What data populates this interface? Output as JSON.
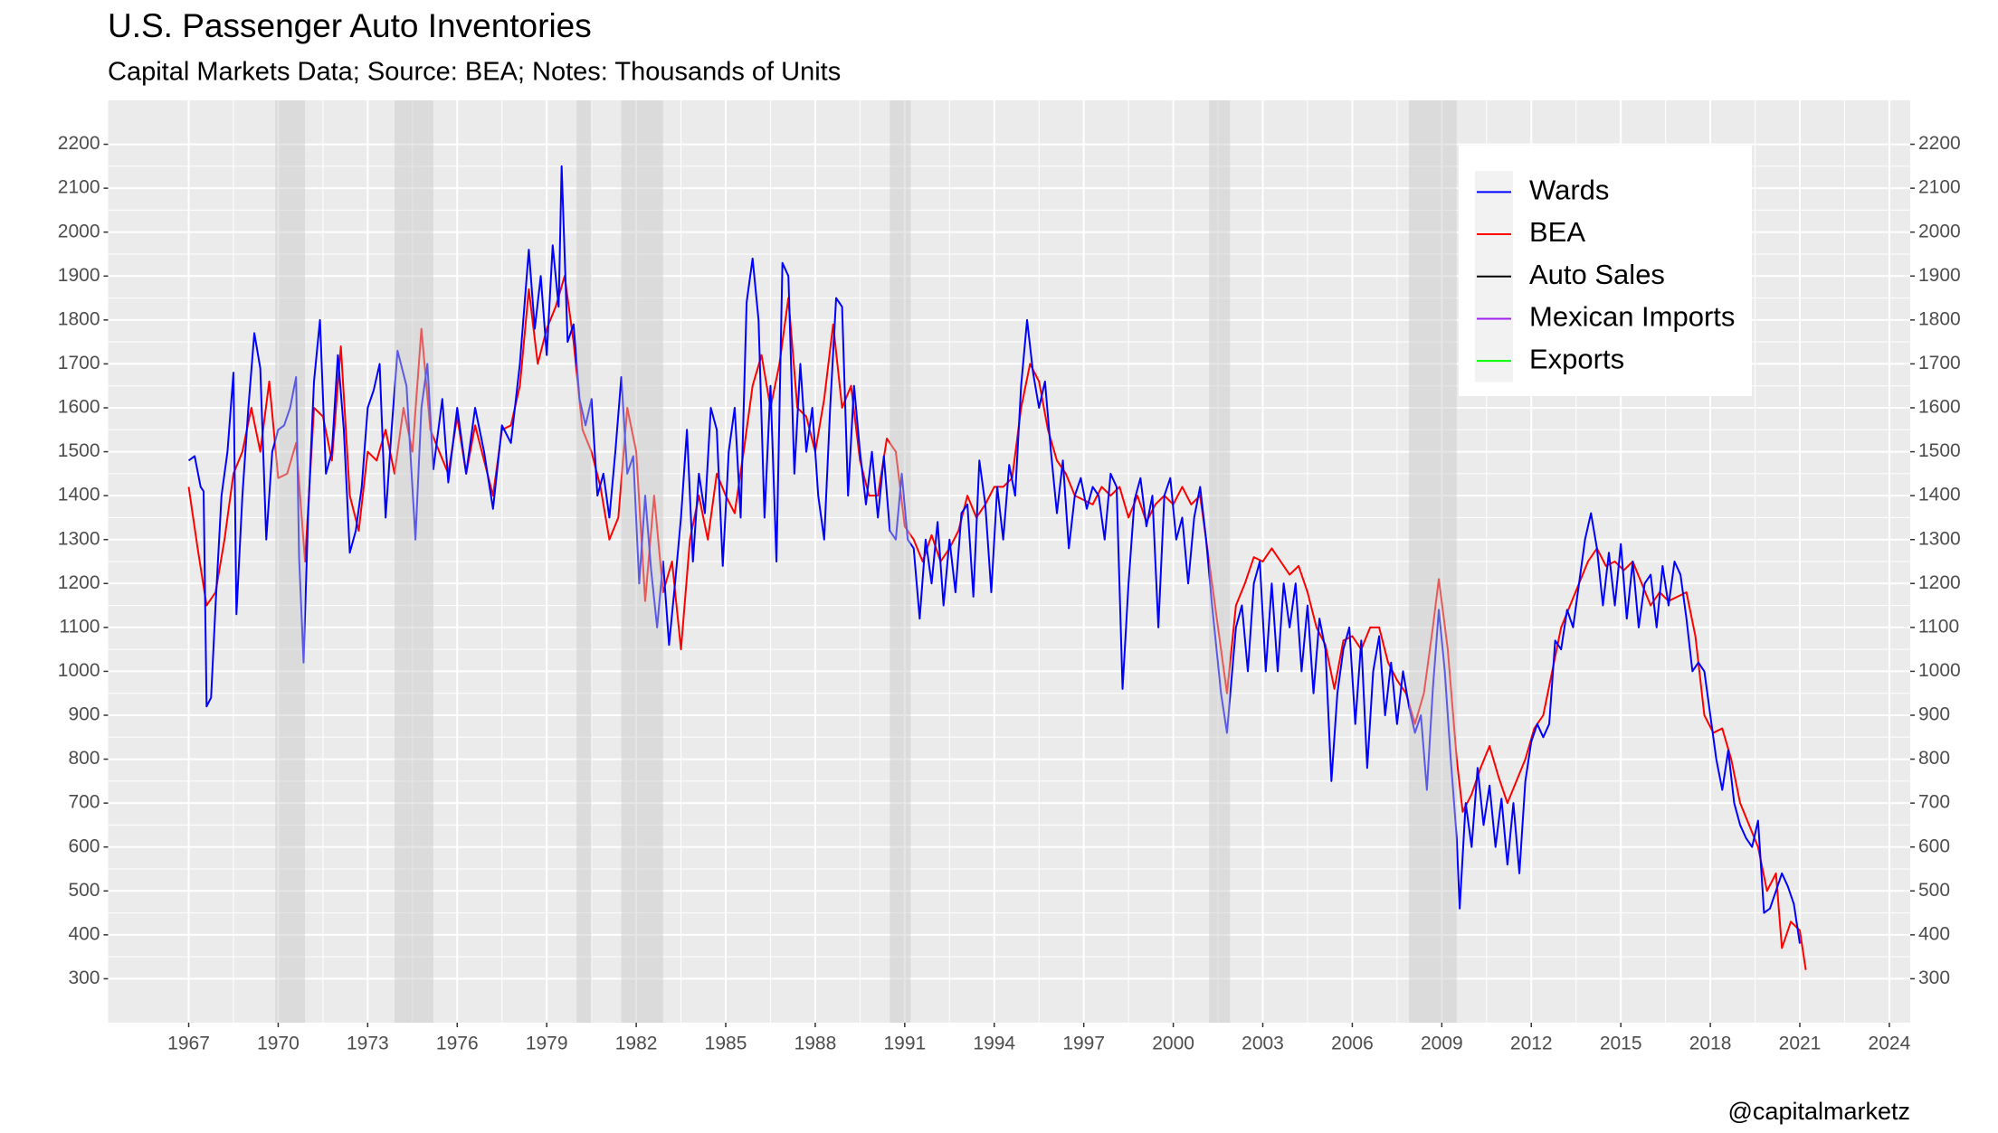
{
  "chart_data": {
    "type": "line",
    "title": "U.S. Passenger Auto Inventories",
    "subtitle": "Capital Markets Data; Source: BEA; Notes: Thousands of Units",
    "caption": "@capitalmarketz",
    "xlim": [
      1964.3,
      2024.7
    ],
    "xticks": [
      1967,
      1970,
      1973,
      1976,
      1979,
      1982,
      1985,
      1988,
      1991,
      1994,
      1997,
      2000,
      2003,
      2006,
      2009,
      2012,
      2015,
      2018,
      2021,
      2024
    ],
    "ylim": [
      200,
      2300
    ],
    "yticks": [
      300,
      400,
      500,
      600,
      700,
      800,
      900,
      1000,
      1100,
      1200,
      1300,
      1400,
      1500,
      1600,
      1700,
      1800,
      1900,
      2000,
      2100,
      2200
    ],
    "y2lim": [
      200,
      2300
    ],
    "y2ticks": [
      300,
      400,
      500,
      600,
      700,
      800,
      900,
      1000,
      1100,
      1200,
      1300,
      1400,
      1500,
      1600,
      1700,
      1800,
      1900,
      2000,
      2100,
      2200
    ],
    "grid": true,
    "legend": "top-right",
    "recessions": [
      [
        1969.9,
        1970.9
      ],
      [
        1973.9,
        1975.2
      ],
      [
        1980.0,
        1980.5
      ],
      [
        1981.5,
        1982.9
      ],
      [
        1990.5,
        1991.2
      ],
      [
        2001.2,
        2001.9
      ],
      [
        2007.9,
        2009.5
      ]
    ],
    "series": [
      {
        "name": "Wards",
        "color": "#0000ff",
        "x": [
          1967.0,
          1967.2,
          1967.4,
          1967.5,
          1967.6,
          1967.75,
          1967.9,
          1968.1,
          1968.3,
          1968.5,
          1968.6,
          1968.8,
          1969.0,
          1969.2,
          1969.4,
          1969.6,
          1969.8,
          1970.0,
          1970.2,
          1970.4,
          1970.6,
          1970.7,
          1970.85,
          1971.0,
          1971.2,
          1971.4,
          1971.6,
          1971.8,
          1972.0,
          1972.2,
          1972.4,
          1972.6,
          1972.8,
          1973.0,
          1973.2,
          1973.4,
          1973.6,
          1973.8,
          1974.0,
          1974.3,
          1974.6,
          1974.8,
          1975.0,
          1975.2,
          1975.5,
          1975.7,
          1976.0,
          1976.3,
          1976.6,
          1976.9,
          1977.2,
          1977.5,
          1977.8,
          1978.1,
          1978.4,
          1978.6,
          1978.8,
          1979.0,
          1979.2,
          1979.4,
          1979.5,
          1979.7,
          1979.9,
          1980.1,
          1980.3,
          1980.5,
          1980.7,
          1980.9,
          1981.1,
          1981.3,
          1981.5,
          1981.7,
          1981.9,
          1982.1,
          1982.3,
          1982.5,
          1982.7,
          1982.9,
          1983.1,
          1983.3,
          1983.5,
          1983.7,
          1983.9,
          1984.1,
          1984.3,
          1984.5,
          1984.7,
          1984.9,
          1985.1,
          1985.3,
          1985.5,
          1985.7,
          1985.9,
          1986.1,
          1986.3,
          1986.5,
          1986.7,
          1986.9,
          1987.1,
          1987.3,
          1987.5,
          1987.7,
          1987.9,
          1988.1,
          1988.3,
          1988.5,
          1988.7,
          1988.9,
          1989.1,
          1989.3,
          1989.5,
          1989.7,
          1989.9,
          1990.1,
          1990.3,
          1990.5,
          1990.7,
          1990.9,
          1991.1,
          1991.3,
          1991.5,
          1991.7,
          1991.9,
          1992.1,
          1992.3,
          1992.5,
          1992.7,
          1992.9,
          1993.1,
          1993.3,
          1993.5,
          1993.7,
          1993.9,
          1994.1,
          1994.3,
          1994.5,
          1994.7,
          1994.9,
          1995.1,
          1995.3,
          1995.5,
          1995.7,
          1995.9,
          1996.1,
          1996.3,
          1996.5,
          1996.7,
          1996.9,
          1997.1,
          1997.3,
          1997.5,
          1997.7,
          1997.9,
          1998.1,
          1998.3,
          1998.5,
          1998.7,
          1998.9,
          1999.1,
          1999.3,
          1999.5,
          1999.7,
          1999.9,
          2000.1,
          2000.3,
          2000.5,
          2000.7,
          2000.9,
          2001.1,
          2001.3,
          2001.6,
          2001.8,
          2002.1,
          2002.3,
          2002.5,
          2002.7,
          2002.9,
          2003.1,
          2003.3,
          2003.5,
          2003.7,
          2003.9,
          2004.1,
          2004.3,
          2004.5,
          2004.7,
          2004.9,
          2005.1,
          2005.3,
          2005.5,
          2005.7,
          2005.9,
          2006.1,
          2006.3,
          2006.5,
          2006.7,
          2006.9,
          2007.1,
          2007.3,
          2007.5,
          2007.7,
          2007.9,
          2008.1,
          2008.3,
          2008.5,
          2008.7,
          2008.9,
          2009.1,
          2009.3,
          2009.5,
          2009.6,
          2009.8,
          2010.0,
          2010.2,
          2010.4,
          2010.6,
          2010.8,
          2011.0,
          2011.2,
          2011.4,
          2011.6,
          2011.8,
          2012.0,
          2012.2,
          2012.4,
          2012.6,
          2012.8,
          2013.0,
          2013.2,
          2013.4,
          2013.6,
          2013.8,
          2014.0,
          2014.2,
          2014.4,
          2014.6,
          2014.8,
          2015.0,
          2015.2,
          2015.4,
          2015.6,
          2015.8,
          2016.0,
          2016.2,
          2016.4,
          2016.6,
          2016.8,
          2017.0,
          2017.2,
          2017.4,
          2017.6,
          2017.8,
          2018.0,
          2018.2,
          2018.4,
          2018.6,
          2018.8,
          2019.0,
          2019.2,
          2019.4,
          2019.6,
          2019.8,
          2020.0,
          2020.2,
          2020.4,
          2020.6,
          2020.8,
          2021.0
        ],
        "values": [
          1480,
          1490,
          1420,
          1410,
          920,
          940,
          1150,
          1400,
          1500,
          1680,
          1130,
          1400,
          1600,
          1770,
          1690,
          1300,
          1500,
          1550,
          1560,
          1600,
          1670,
          1260,
          1020,
          1350,
          1660,
          1800,
          1450,
          1500,
          1720,
          1550,
          1270,
          1320,
          1420,
          1600,
          1640,
          1700,
          1350,
          1550,
          1730,
          1650,
          1300,
          1600,
          1700,
          1460,
          1620,
          1430,
          1600,
          1450,
          1600,
          1500,
          1370,
          1560,
          1520,
          1700,
          1960,
          1780,
          1900,
          1720,
          1970,
          1830,
          2150,
          1750,
          1790,
          1620,
          1560,
          1620,
          1400,
          1450,
          1350,
          1500,
          1670,
          1450,
          1490,
          1200,
          1400,
          1230,
          1100,
          1250,
          1060,
          1200,
          1350,
          1550,
          1250,
          1450,
          1360,
          1600,
          1550,
          1240,
          1500,
          1600,
          1350,
          1840,
          1940,
          1800,
          1350,
          1650,
          1250,
          1930,
          1900,
          1450,
          1700,
          1500,
          1600,
          1400,
          1300,
          1600,
          1850,
          1830,
          1400,
          1650,
          1500,
          1380,
          1500,
          1350,
          1490,
          1320,
          1300,
          1450,
          1300,
          1280,
          1120,
          1300,
          1200,
          1340,
          1150,
          1300,
          1180,
          1360,
          1380,
          1170,
          1480,
          1380,
          1180,
          1420,
          1300,
          1470,
          1400,
          1650,
          1800,
          1680,
          1600,
          1660,
          1500,
          1360,
          1480,
          1280,
          1400,
          1440,
          1370,
          1420,
          1400,
          1300,
          1450,
          1420,
          960,
          1200,
          1390,
          1440,
          1330,
          1400,
          1100,
          1400,
          1440,
          1300,
          1350,
          1200,
          1350,
          1420,
          1300,
          1150,
          950,
          860,
          1100,
          1150,
          1000,
          1200,
          1250,
          1000,
          1200,
          1000,
          1200,
          1100,
          1200,
          1000,
          1150,
          950,
          1120,
          1050,
          750,
          950,
          1050,
          1100,
          880,
          1070,
          780,
          1000,
          1080,
          900,
          1020,
          880,
          1000,
          920,
          860,
          900,
          730,
          960,
          1140,
          1000,
          800,
          620,
          460,
          700,
          600,
          780,
          650,
          740,
          600,
          710,
          560,
          700,
          540,
          750,
          840,
          880,
          850,
          880,
          1070,
          1050,
          1140,
          1100,
          1200,
          1300,
          1360,
          1280,
          1150,
          1270,
          1150,
          1290,
          1120,
          1250,
          1100,
          1200,
          1220,
          1100,
          1240,
          1150,
          1250,
          1220,
          1120,
          1000,
          1020,
          1000,
          900,
          800,
          730,
          820,
          700,
          650,
          620,
          600,
          660,
          450,
          460,
          500,
          540,
          510,
          470,
          380
        ]
      },
      {
        "name": "BEA",
        "color": "#ff0000",
        "x": [
          1967.0,
          1967.3,
          1967.6,
          1967.9,
          1968.2,
          1968.5,
          1968.8,
          1969.1,
          1969.4,
          1969.7,
          1970.0,
          1970.3,
          1970.6,
          1970.9,
          1971.2,
          1971.5,
          1971.8,
          1972.1,
          1972.4,
          1972.7,
          1973.0,
          1973.3,
          1973.6,
          1973.9,
          1974.2,
          1974.5,
          1974.8,
          1975.1,
          1975.4,
          1975.7,
          1976.0,
          1976.3,
          1976.6,
          1976.9,
          1977.2,
          1977.5,
          1977.8,
          1978.1,
          1978.4,
          1978.7,
          1979.0,
          1979.3,
          1979.6,
          1979.9,
          1980.2,
          1980.5,
          1980.8,
          1981.1,
          1981.4,
          1981.7,
          1982.0,
          1982.3,
          1982.6,
          1982.9,
          1983.2,
          1983.5,
          1983.8,
          1984.1,
          1984.4,
          1984.7,
          1985.0,
          1985.3,
          1985.6,
          1985.9,
          1986.2,
          1986.5,
          1986.8,
          1987.1,
          1987.4,
          1987.7,
          1988.0,
          1988.3,
          1988.6,
          1988.9,
          1989.2,
          1989.5,
          1989.8,
          1990.1,
          1990.4,
          1990.7,
          1991.0,
          1991.3,
          1991.6,
          1991.9,
          1992.2,
          1992.5,
          1992.8,
          1993.1,
          1993.4,
          1993.7,
          1994.0,
          1994.3,
          1994.6,
          1994.9,
          1995.2,
          1995.5,
          1995.8,
          1996.1,
          1996.4,
          1996.7,
          1997.0,
          1997.3,
          1997.6,
          1997.9,
          1998.2,
          1998.5,
          1998.8,
          1999.1,
          1999.4,
          1999.7,
          2000.0,
          2000.3,
          2000.6,
          2000.9,
          2001.2,
          2001.5,
          2001.8,
          2002.1,
          2002.4,
          2002.7,
          2003.0,
          2003.3,
          2003.6,
          2003.9,
          2004.2,
          2004.5,
          2004.8,
          2005.1,
          2005.4,
          2005.7,
          2006.0,
          2006.3,
          2006.6,
          2006.9,
          2007.2,
          2007.5,
          2007.8,
          2008.1,
          2008.4,
          2008.7,
          2008.9,
          2009.2,
          2009.5,
          2009.7,
          2010.0,
          2010.3,
          2010.6,
          2010.9,
          2011.2,
          2011.5,
          2011.8,
          2012.1,
          2012.4,
          2012.7,
          2013.0,
          2013.3,
          2013.6,
          2013.9,
          2014.2,
          2014.5,
          2014.8,
          2015.1,
          2015.4,
          2015.7,
          2016.0,
          2016.3,
          2016.6,
          2016.9,
          2017.2,
          2017.5,
          2017.8,
          2018.1,
          2018.4,
          2018.7,
          2019.0,
          2019.3,
          2019.6,
          2019.9,
          2020.2,
          2020.4,
          2020.7,
          2021.0,
          2021.2
        ],
        "values": [
          1420,
          1280,
          1150,
          1180,
          1300,
          1450,
          1500,
          1600,
          1500,
          1660,
          1440,
          1450,
          1520,
          1250,
          1600,
          1580,
          1480,
          1740,
          1400,
          1320,
          1500,
          1480,
          1550,
          1450,
          1600,
          1500,
          1780,
          1550,
          1500,
          1450,
          1580,
          1450,
          1560,
          1480,
          1400,
          1550,
          1560,
          1650,
          1870,
          1700,
          1780,
          1830,
          1900,
          1750,
          1550,
          1500,
          1420,
          1300,
          1350,
          1600,
          1500,
          1160,
          1400,
          1180,
          1250,
          1050,
          1300,
          1400,
          1300,
          1450,
          1400,
          1360,
          1500,
          1650,
          1720,
          1600,
          1700,
          1850,
          1600,
          1580,
          1500,
          1620,
          1790,
          1600,
          1650,
          1480,
          1400,
          1400,
          1530,
          1500,
          1330,
          1300,
          1250,
          1310,
          1250,
          1280,
          1320,
          1400,
          1350,
          1380,
          1420,
          1420,
          1440,
          1600,
          1700,
          1660,
          1550,
          1480,
          1450,
          1400,
          1390,
          1380,
          1420,
          1400,
          1420,
          1350,
          1400,
          1340,
          1380,
          1400,
          1380,
          1420,
          1380,
          1400,
          1250,
          1100,
          950,
          1150,
          1200,
          1260,
          1250,
          1280,
          1250,
          1220,
          1240,
          1180,
          1100,
          1060,
          960,
          1070,
          1080,
          1050,
          1100,
          1100,
          1020,
          980,
          950,
          880,
          950,
          1100,
          1210,
          1050,
          800,
          680,
          720,
          780,
          830,
          760,
          700,
          750,
          800,
          870,
          900,
          1000,
          1100,
          1150,
          1200,
          1250,
          1280,
          1240,
          1250,
          1230,
          1250,
          1200,
          1150,
          1180,
          1160,
          1170,
          1180,
          1080,
          900,
          860,
          870,
          800,
          700,
          650,
          600,
          500,
          540,
          370,
          430,
          410,
          320
        ]
      },
      {
        "name": "Auto Sales",
        "color": "#000000",
        "x": [],
        "values": []
      },
      {
        "name": "Mexican Imports",
        "color": "#a020f0",
        "x": [],
        "values": []
      },
      {
        "name": "Exports",
        "color": "#00ff00",
        "x": [],
        "values": []
      }
    ]
  }
}
